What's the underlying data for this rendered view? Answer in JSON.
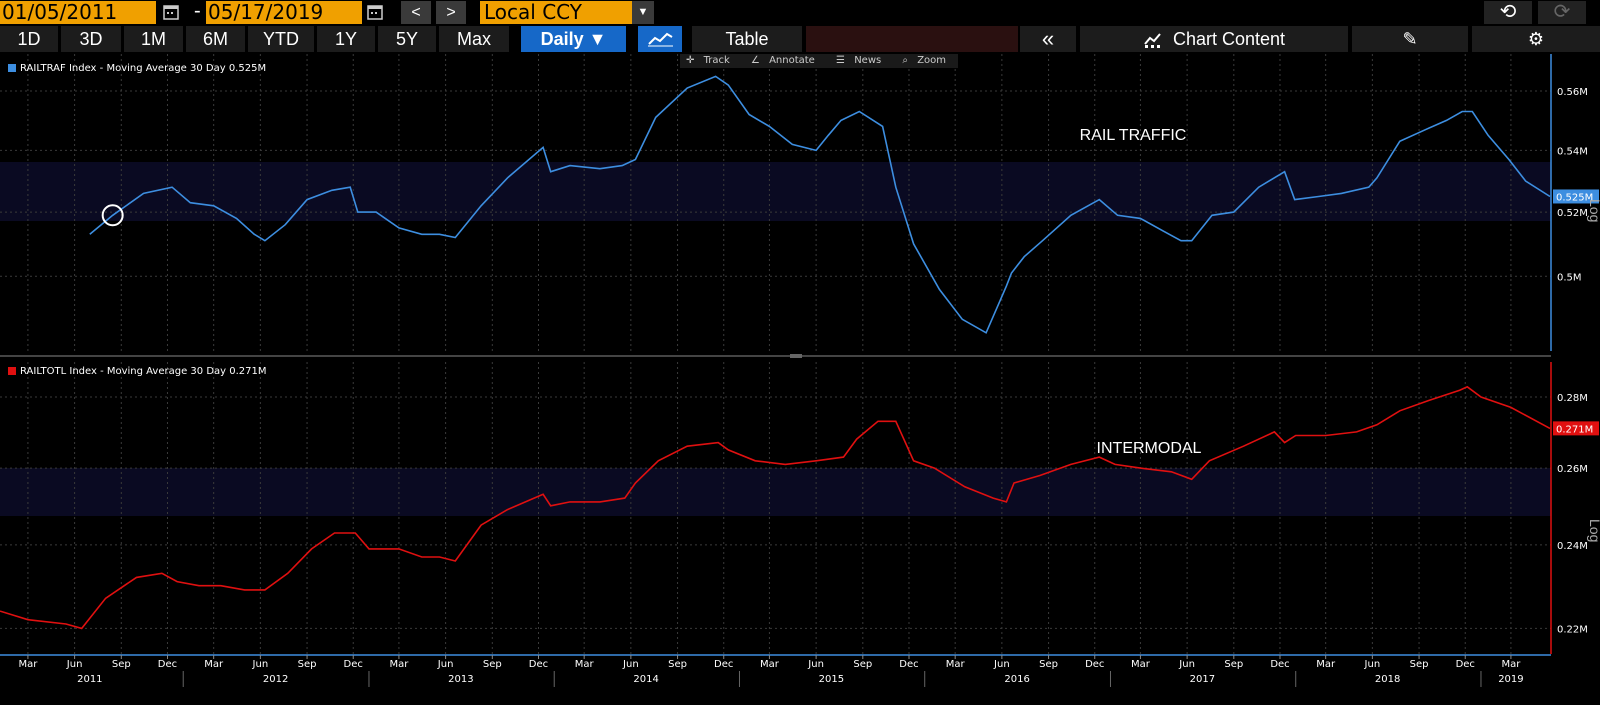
{
  "header": {
    "start_date": "01/05/2011",
    "end_date": "05/17/2019",
    "date_separator": "-",
    "prev_label": "<",
    "next_label": ">",
    "currency": "Local CCY",
    "dropdown_glyph": "▼",
    "undo_glyph": "⟲",
    "redo_glyph": "⟳"
  },
  "toolbar": {
    "ranges": [
      "1D",
      "3D",
      "1M",
      "6M",
      "YTD",
      "1Y",
      "5Y",
      "Max"
    ],
    "frequency": "Daily ▼",
    "table_label": "Table",
    "collapse_glyph": "«",
    "chart_content_label": "Chart Content",
    "edit_glyph": "✎",
    "settings_glyph": "⚙"
  },
  "tools": {
    "track": "Track",
    "annotate": "Annotate",
    "news": "News",
    "zoom": "Zoom"
  },
  "colors": {
    "top_series": "#3d8ee0",
    "bottom_series": "#e01010",
    "highlight_band": "#0a0a22",
    "grid": "#3a3a3a",
    "accent": "#f0a000",
    "active_button": "#1668c8"
  },
  "chart_data": [
    {
      "type": "line",
      "legend": "RAILTRAF Index - Moving Average 30 Day 0.525M",
      "annotation": "RAIL TRAFFIC",
      "axis_mode": "Log",
      "last_value_label": "0.525M",
      "series": [
        {
          "color": "#3d8ee0",
          "x": [
            "2011-07-01",
            "2011-08-15",
            "2011-10-15",
            "2011-12-10",
            "2012-01-15",
            "2012-03-01",
            "2012-04-15",
            "2012-05-20",
            "2012-06-10",
            "2012-07-20",
            "2012-09-01",
            "2012-10-20",
            "2012-11-25",
            "2012-12-10",
            "2013-01-15",
            "2013-03-01",
            "2013-04-15",
            "2013-05-20",
            "2013-06-20",
            "2013-08-10",
            "2013-10-01",
            "2013-12-10",
            "2013-12-25",
            "2014-02-01",
            "2014-04-01",
            "2014-05-15",
            "2014-06-10",
            "2014-07-20",
            "2014-09-20",
            "2014-11-15",
            "2014-12-10",
            "2015-01-20",
            "2015-03-01",
            "2015-04-15",
            "2015-06-01",
            "2015-06-25",
            "2015-07-20",
            "2015-08-25",
            "2015-10-10",
            "2015-11-05",
            "2015-12-10",
            "2016-01-30",
            "2016-03-15",
            "2016-05-01",
            "2016-06-10",
            "2016-06-20",
            "2016-07-15",
            "2016-08-20",
            "2016-10-15",
            "2016-12-10",
            "2017-01-15",
            "2017-03-01",
            "2017-04-15",
            "2017-05-20",
            "2017-06-10",
            "2017-07-20",
            "2017-09-01",
            "2017-10-20",
            "2017-12-10",
            "2017-12-30",
            "2018-02-15",
            "2018-04-01",
            "2018-05-25",
            "2018-06-10",
            "2018-07-25",
            "2018-09-15",
            "2018-10-25",
            "2018-11-25",
            "2018-12-15",
            "2019-01-15",
            "2019-02-25",
            "2019-03-30",
            "2019-05-17"
          ],
          "values": [
            0.513,
            0.519,
            0.526,
            0.528,
            0.523,
            0.522,
            0.518,
            0.513,
            0.511,
            0.516,
            0.524,
            0.527,
            0.528,
            0.52,
            0.52,
            0.515,
            0.513,
            0.513,
            0.512,
            0.522,
            0.531,
            0.541,
            0.533,
            0.535,
            0.534,
            0.535,
            0.537,
            0.551,
            0.561,
            0.565,
            0.562,
            0.552,
            0.548,
            0.542,
            0.54,
            0.545,
            0.55,
            0.553,
            0.548,
            0.528,
            0.51,
            0.496,
            0.487,
            0.483,
            0.497,
            0.501,
            0.506,
            0.511,
            0.519,
            0.524,
            0.519,
            0.518,
            0.514,
            0.511,
            0.511,
            0.519,
            0.52,
            0.528,
            0.533,
            0.524,
            0.525,
            0.526,
            0.528,
            0.531,
            0.543,
            0.547,
            0.55,
            0.553,
            0.553,
            0.545,
            0.537,
            0.53,
            0.525
          ]
        }
      ],
      "y_ticks": [
        "0.5M",
        "0.52M",
        "0.54M",
        "0.56M"
      ],
      "y_range": [
        0.48,
        0.57
      ]
    },
    {
      "type": "line",
      "legend": "RAILTOTL Index - Moving Average 30 Day 0.271M",
      "annotation": "INTERMODAL",
      "axis_mode": "Log",
      "last_value_label": "0.271M",
      "series": [
        {
          "color": "#e01010",
          "x": [
            "2011-01-05",
            "2011-03-01",
            "2011-05-15",
            "2011-06-15",
            "2011-08-01",
            "2011-10-01",
            "2011-11-20",
            "2011-12-20",
            "2012-02-01",
            "2012-03-15",
            "2012-05-01",
            "2012-06-10",
            "2012-07-25",
            "2012-09-10",
            "2012-10-25",
            "2012-12-05",
            "2013-01-01",
            "2013-03-01",
            "2013-04-15",
            "2013-05-20",
            "2013-06-20",
            "2013-08-10",
            "2013-10-01",
            "2013-12-10",
            "2013-12-25",
            "2014-02-01",
            "2014-04-01",
            "2014-05-20",
            "2014-06-10",
            "2014-07-25",
            "2014-09-20",
            "2014-11-20",
            "2014-12-10",
            "2015-02-01",
            "2015-04-01",
            "2015-06-01",
            "2015-07-25",
            "2015-08-20",
            "2015-10-01",
            "2015-11-05",
            "2015-12-10",
            "2016-01-20",
            "2016-03-20",
            "2016-05-15",
            "2016-06-10",
            "2016-06-25",
            "2016-08-15",
            "2016-10-15",
            "2016-12-10",
            "2017-01-10",
            "2017-03-01",
            "2017-05-01",
            "2017-06-10",
            "2017-07-15",
            "2017-09-20",
            "2017-11-20",
            "2017-12-10",
            "2018-01-01",
            "2018-03-01",
            "2018-05-01",
            "2018-06-10",
            "2018-07-25",
            "2018-09-20",
            "2018-11-20",
            "2018-12-05",
            "2019-01-01",
            "2019-03-01",
            "2019-05-17"
          ],
          "values": [
            0.224,
            0.222,
            0.221,
            0.22,
            0.227,
            0.232,
            0.233,
            0.231,
            0.23,
            0.23,
            0.229,
            0.229,
            0.233,
            0.239,
            0.243,
            0.243,
            0.239,
            0.239,
            0.237,
            0.237,
            0.236,
            0.245,
            0.249,
            0.253,
            0.25,
            0.251,
            0.251,
            0.252,
            0.256,
            0.262,
            0.266,
            0.267,
            0.265,
            0.262,
            0.261,
            0.262,
            0.263,
            0.268,
            0.273,
            0.273,
            0.262,
            0.26,
            0.255,
            0.252,
            0.251,
            0.256,
            0.258,
            0.261,
            0.263,
            0.261,
            0.26,
            0.259,
            0.257,
            0.262,
            0.266,
            0.27,
            0.267,
            0.269,
            0.269,
            0.27,
            0.272,
            0.276,
            0.279,
            0.282,
            0.283,
            0.28,
            0.277,
            0.271
          ]
        }
      ],
      "y_ticks": [
        "0.22M",
        "0.24M",
        "0.26M",
        "0.28M"
      ],
      "y_range": [
        0.216,
        0.288
      ]
    }
  ],
  "x_axis": {
    "range": [
      "2011-01-05",
      "2019-05-17"
    ],
    "months": [
      {
        "label": "Mar",
        "date": "2011-03-01"
      },
      {
        "label": "Jun",
        "date": "2011-06-01"
      },
      {
        "label": "Sep",
        "date": "2011-09-01"
      },
      {
        "label": "Dec",
        "date": "2011-12-01"
      },
      {
        "label": "Mar",
        "date": "2012-03-01"
      },
      {
        "label": "Jun",
        "date": "2012-06-01"
      },
      {
        "label": "Sep",
        "date": "2012-09-01"
      },
      {
        "label": "Dec",
        "date": "2012-12-01"
      },
      {
        "label": "Mar",
        "date": "2013-03-01"
      },
      {
        "label": "Jun",
        "date": "2013-06-01"
      },
      {
        "label": "Sep",
        "date": "2013-09-01"
      },
      {
        "label": "Dec",
        "date": "2013-12-01"
      },
      {
        "label": "Mar",
        "date": "2014-03-01"
      },
      {
        "label": "Jun",
        "date": "2014-06-01"
      },
      {
        "label": "Sep",
        "date": "2014-09-01"
      },
      {
        "label": "Dec",
        "date": "2014-12-01"
      },
      {
        "label": "Mar",
        "date": "2015-03-01"
      },
      {
        "label": "Jun",
        "date": "2015-06-01"
      },
      {
        "label": "Sep",
        "date": "2015-09-01"
      },
      {
        "label": "Dec",
        "date": "2015-12-01"
      },
      {
        "label": "Mar",
        "date": "2016-03-01"
      },
      {
        "label": "Jun",
        "date": "2016-06-01"
      },
      {
        "label": "Sep",
        "date": "2016-09-01"
      },
      {
        "label": "Dec",
        "date": "2016-12-01"
      },
      {
        "label": "Mar",
        "date": "2017-03-01"
      },
      {
        "label": "Jun",
        "date": "2017-06-01"
      },
      {
        "label": "Sep",
        "date": "2017-09-01"
      },
      {
        "label": "Dec",
        "date": "2017-12-01"
      },
      {
        "label": "Mar",
        "date": "2018-03-01"
      },
      {
        "label": "Jun",
        "date": "2018-06-01"
      },
      {
        "label": "Sep",
        "date": "2018-09-01"
      },
      {
        "label": "Dec",
        "date": "2018-12-01"
      },
      {
        "label": "Mar",
        "date": "2019-03-01"
      }
    ],
    "years": [
      {
        "label": "2011",
        "date": "2011-07-01"
      },
      {
        "label": "2012",
        "date": "2012-07-01"
      },
      {
        "label": "2013",
        "date": "2013-07-01"
      },
      {
        "label": "2014",
        "date": "2014-07-01"
      },
      {
        "label": "2015",
        "date": "2015-07-01"
      },
      {
        "label": "2016",
        "date": "2016-07-01"
      },
      {
        "label": "2017",
        "date": "2017-07-01"
      },
      {
        "label": "2018",
        "date": "2018-07-01"
      },
      {
        "label": "2019",
        "date": "2019-03-01"
      }
    ]
  }
}
